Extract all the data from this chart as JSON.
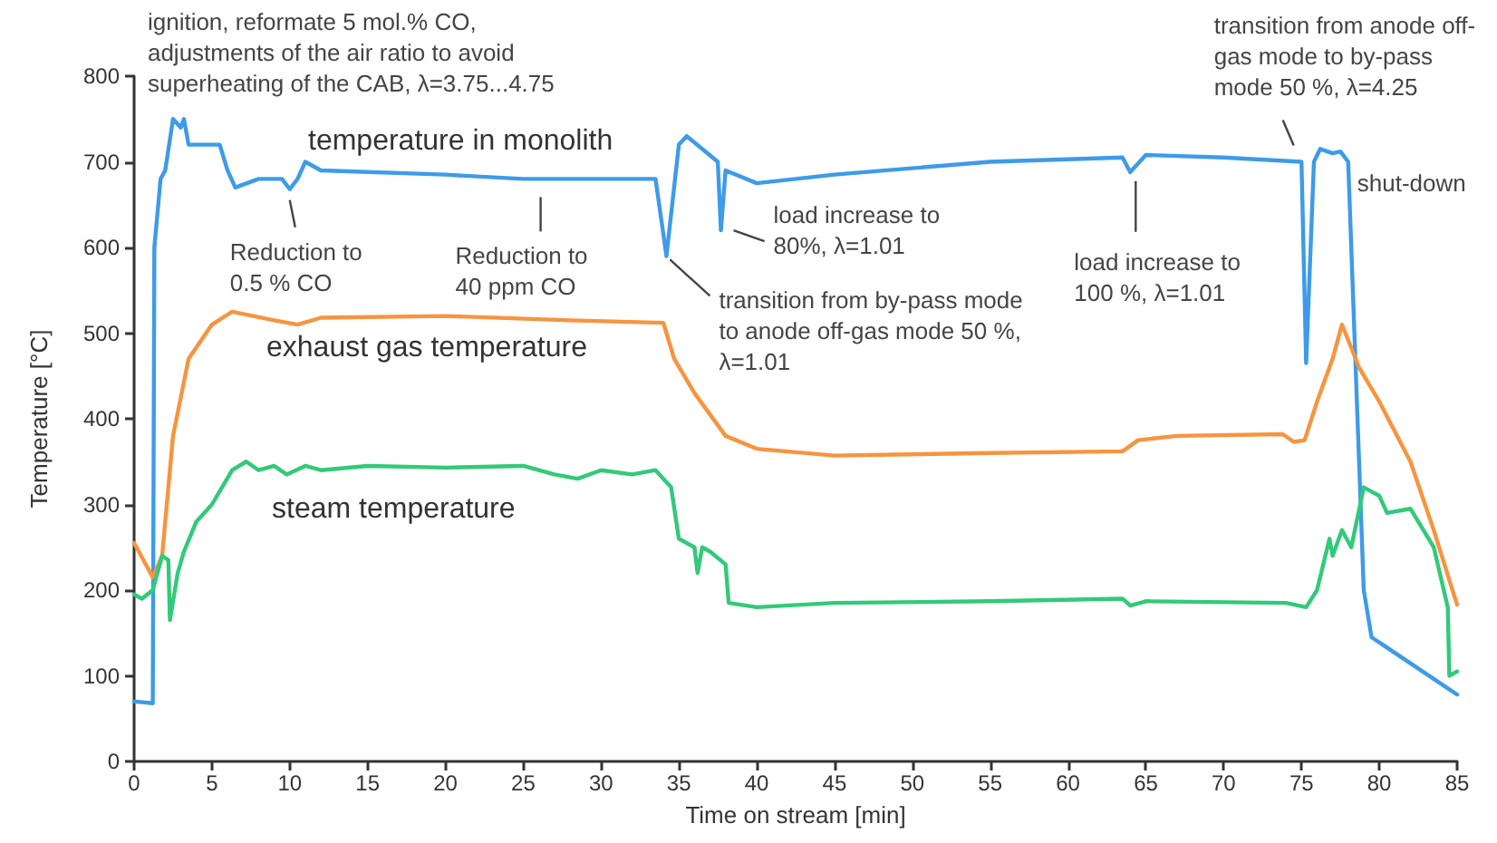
{
  "chart_data": {
    "type": "line",
    "xlabel": "Time on stream [min]",
    "ylabel": "Temperature [°C]",
    "xlim": [
      0,
      85
    ],
    "xticks": [
      0,
      5,
      10,
      15,
      20,
      25,
      30,
      35,
      40,
      45,
      50,
      55,
      60,
      65,
      70,
      75,
      80,
      85
    ],
    "ylim": [
      0,
      800
    ],
    "yticks": [
      0,
      100,
      200,
      300,
      400,
      500,
      600,
      700,
      800
    ],
    "grid": false,
    "legend": false,
    "marker": "none",
    "line_style": "solid",
    "series": [
      {
        "name": "temperature in monolith",
        "color": "#3d9be9",
        "x": [
          0,
          1.2,
          1.3,
          1.5,
          1.7,
          2,
          2.5,
          3,
          3.2,
          3.5,
          5.5,
          6,
          6.5,
          8,
          9.5,
          10,
          10.5,
          11,
          12,
          20,
          25,
          33.5,
          34.2,
          35,
          35.5,
          37.5,
          37.7,
          38,
          40,
          45,
          55,
          63.5,
          64,
          65,
          70,
          75,
          75.3,
          75.8,
          76.2,
          77,
          77.5,
          78,
          78.6,
          79,
          79.5,
          85
        ],
        "values": [
          70,
          68,
          600,
          640,
          680,
          690,
          750,
          740,
          750,
          720,
          720,
          690,
          670,
          680,
          680,
          668,
          680,
          700,
          690,
          685,
          680,
          680,
          590,
          720,
          730,
          700,
          620,
          690,
          675,
          685,
          700,
          705,
          688,
          708,
          705,
          700,
          465,
          700,
          715,
          710,
          712,
          700,
          400,
          200,
          145,
          78
        ]
      },
      {
        "name": "exhaust gas temperature",
        "color": "#f7943f",
        "x": [
          0,
          1.2,
          1.8,
          2.5,
          3.5,
          5,
          6.3,
          9,
          10.5,
          12,
          20,
          28,
          34,
          34.7,
          36,
          38,
          40,
          45,
          55,
          63.5,
          64.5,
          67,
          73.8,
          74.5,
          75.2,
          76,
          77,
          77.6,
          78.7,
          80,
          82,
          83.5,
          84.7,
          85
        ],
        "values": [
          255,
          215,
          240,
          380,
          470,
          510,
          525,
          515,
          510,
          518,
          520,
          515,
          512,
          470,
          430,
          380,
          365,
          357,
          360,
          362,
          375,
          380,
          382,
          373,
          375,
          420,
          470,
          510,
          460,
          420,
          350,
          270,
          200,
          183
        ]
      },
      {
        "name": "steam temperature",
        "color": "#33c97a",
        "x": [
          0,
          0.5,
          1.2,
          1.8,
          2.2,
          2.3,
          2.8,
          3.2,
          4,
          5,
          6.3,
          7.2,
          8,
          9,
          9.8,
          11,
          12,
          15,
          20,
          25,
          27,
          28.5,
          30,
          32,
          33.5,
          34.5,
          35,
          36,
          36.2,
          36.5,
          37,
          38,
          38.2,
          40,
          45,
          55,
          63.5,
          64,
          65,
          74,
          75.3,
          76,
          76.8,
          77,
          77.6,
          78.2,
          79,
          80,
          80.5,
          82,
          83.5,
          84.4,
          84.5,
          85
        ],
        "values": [
          195,
          190,
          200,
          240,
          235,
          165,
          220,
          245,
          280,
          300,
          340,
          350,
          340,
          345,
          335,
          345,
          340,
          345,
          343,
          345,
          335,
          330,
          340,
          335,
          340,
          320,
          260,
          250,
          220,
          250,
          245,
          230,
          185,
          180,
          185,
          187,
          190,
          182,
          187,
          185,
          180,
          200,
          260,
          240,
          270,
          250,
          320,
          310,
          290,
          295,
          250,
          180,
          100,
          105
        ]
      }
    ],
    "annotations": [
      {
        "text": "ignition, reformate 5 mol.% CO,\nadjustments of the air ratio to avoid\nsuperheating of the CAB, λ=3.75...4.75",
        "x": 2.5,
        "y": 750
      },
      {
        "text": "Reduction to\n0.5 % CO",
        "x": 10,
        "y": 668
      },
      {
        "text": "Reduction to\n40 ppm CO",
        "x": 26,
        "y": 680
      },
      {
        "text": "transition from by-pass mode\nto anode off-gas mode 50 %,\nλ=1.01",
        "x": 34.2,
        "y": 590
      },
      {
        "text": "load increase to\n80%, λ=1.01",
        "x": 37.7,
        "y": 620
      },
      {
        "text": "load increase to\n100 %, λ=1.01",
        "x": 64,
        "y": 688
      },
      {
        "text": "transition from anode off-\ngas mode to by-pass\nmode 50 %, λ=4.25",
        "x": 75.2,
        "y": 700
      },
      {
        "text": "shut-down",
        "x": 78,
        "y": 700
      }
    ]
  }
}
